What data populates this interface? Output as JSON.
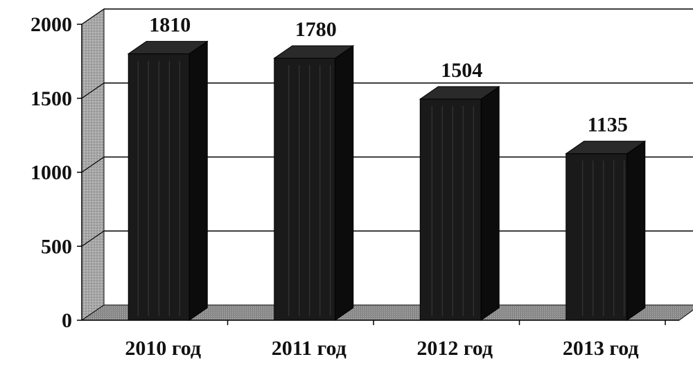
{
  "chart_data": {
    "type": "bar",
    "categories": [
      "2010 год",
      "2011 год",
      "2012 год",
      "2013 год"
    ],
    "values": [
      1810,
      1780,
      1504,
      1135
    ],
    "data_labels": [
      "1810",
      "1780",
      "1504",
      "1135"
    ],
    "y_ticks": [
      "0",
      "500",
      "1000",
      "1500",
      "2000"
    ],
    "ylim": [
      0,
      2000
    ],
    "grid": true,
    "style": "3d",
    "bar_color": "#1a1a1a",
    "wall_color": "#9a9a9a"
  }
}
